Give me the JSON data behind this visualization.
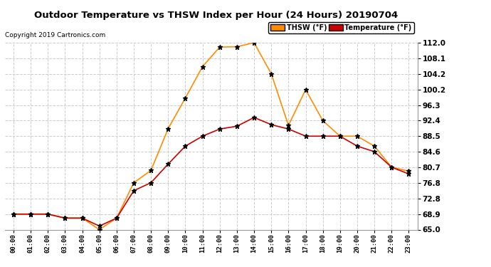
{
  "title": "Outdoor Temperature vs THSW Index per Hour (24 Hours) 20190704",
  "copyright": "Copyright 2019 Cartronics.com",
  "hours": [
    "00:00",
    "01:00",
    "02:00",
    "03:00",
    "04:00",
    "05:00",
    "06:00",
    "07:00",
    "08:00",
    "09:00",
    "10:00",
    "11:00",
    "12:00",
    "13:00",
    "14:00",
    "15:00",
    "16:00",
    "17:00",
    "18:00",
    "19:00",
    "20:00",
    "21:00",
    "22:00",
    "23:00"
  ],
  "thsw": [
    68.9,
    68.9,
    68.9,
    67.9,
    67.9,
    65.0,
    67.9,
    76.8,
    79.9,
    90.4,
    98.1,
    106.0,
    110.9,
    111.0,
    112.0,
    104.2,
    91.2,
    100.2,
    92.4,
    88.5,
    88.5,
    86.0,
    80.7,
    79.7
  ],
  "temperature": [
    68.9,
    68.9,
    68.9,
    67.9,
    67.9,
    65.9,
    67.9,
    74.8,
    76.8,
    81.5,
    86.0,
    88.5,
    90.3,
    91.0,
    93.2,
    91.4,
    90.3,
    88.5,
    88.5,
    88.5,
    86.0,
    84.6,
    80.7,
    79.0
  ],
  "thsw_color": "#FF8C00",
  "temp_color": "#CC0000",
  "ylim_min": 65.0,
  "ylim_max": 112.0,
  "yticks": [
    65.0,
    68.9,
    72.8,
    76.8,
    80.7,
    84.6,
    88.5,
    92.4,
    96.3,
    100.2,
    104.2,
    108.1,
    112.0
  ],
  "background_color": "#ffffff",
  "plot_bg_color": "#ffffff",
  "grid_color": "#cccccc",
  "legend_thsw_label": "THSW (°F)",
  "legend_temp_label": "Temperature (°F)"
}
